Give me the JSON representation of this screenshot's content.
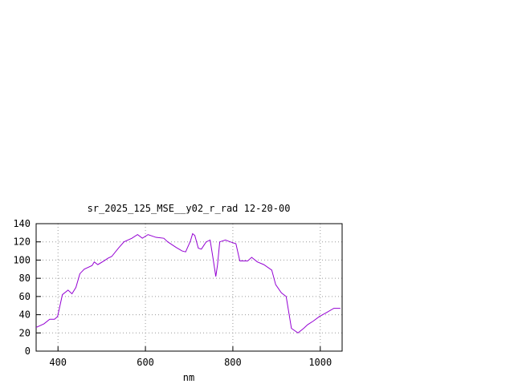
{
  "chart_data": {
    "type": "line",
    "title": "sr_2025_125_MSE__y02_r_rad 12-20-00",
    "x_label": "nm",
    "xlim": [
      350,
      1050
    ],
    "xticks": [
      400,
      600,
      800,
      1000
    ],
    "ylim": [
      0,
      140
    ],
    "yticks": [
      0,
      20,
      40,
      60,
      80,
      100,
      120,
      140
    ],
    "grid": true,
    "series": [
      {
        "color": "#9400d3",
        "x": [
          350,
          368,
          381,
          392,
          399,
          405,
          410,
          423,
          432,
          441,
          450,
          460,
          478,
          483,
          491,
          505,
          514,
          523,
          538,
          551,
          569,
          582,
          593,
          606,
          624,
          642,
          651,
          670,
          684,
          692,
          703,
          708,
          713,
          721,
          728,
          739,
          748,
          754,
          761,
          765,
          770,
          783,
          794,
          807,
          816,
          834,
          843,
          856,
          871,
          889,
          898,
          911,
          922,
          934,
          949,
          962,
          971,
          984,
          998,
          1013,
          1031,
          1046
        ],
        "values": [
          26,
          30,
          35,
          35,
          38,
          51,
          62,
          67,
          63,
          70,
          85,
          90,
          94,
          98,
          95,
          99,
          102,
          104,
          113,
          120,
          124,
          128,
          124,
          128,
          125,
          124,
          120,
          114,
          110,
          109,
          121,
          129,
          127,
          113,
          112,
          120,
          122,
          104,
          82,
          95,
          120,
          122,
          120,
          118,
          99,
          99,
          103,
          98,
          95,
          89,
          73,
          64,
          60,
          25,
          20,
          25,
          29,
          33,
          38,
          42,
          47,
          47
        ]
      }
    ]
  }
}
